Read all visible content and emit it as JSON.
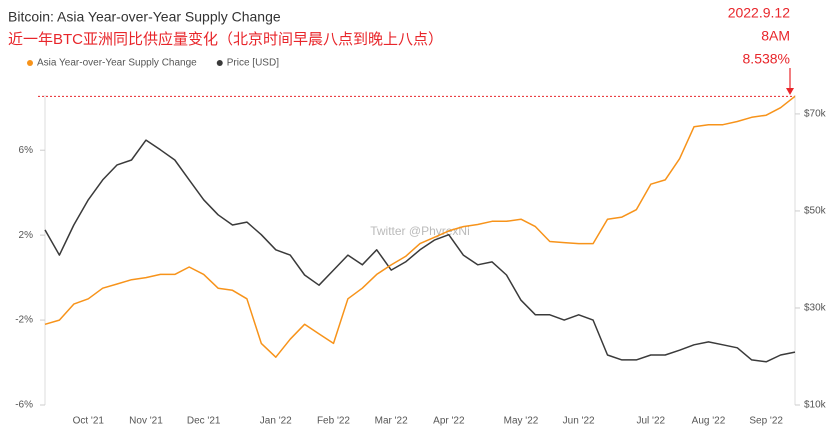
{
  "chart_data": {
    "type": "line",
    "title": "Bitcoin: Asia Year-over-Year Supply Change",
    "subtitle": "近一年BTC亚洲同比供应量变化（北京时间早晨八点到晚上八点）",
    "watermark": "Twitter @PhyrexNi",
    "annotation": {
      "date": "2022.9.12",
      "time": "8AM",
      "value": 8.538,
      "label": "8.538%",
      "color": "#e8262b"
    },
    "categories": [
      null,
      null,
      null,
      "Oct '21",
      null,
      null,
      null,
      "Nov '21",
      null,
      null,
      null,
      "Dec '21",
      null,
      null,
      null,
      null,
      "Jan '22",
      null,
      null,
      null,
      "Feb '22",
      null,
      null,
      null,
      "Mar '22",
      null,
      null,
      null,
      "Apr '22",
      null,
      null,
      null,
      null,
      "May '22",
      null,
      null,
      null,
      "Jun '22",
      null,
      null,
      null,
      null,
      "Jul '22",
      null,
      null,
      null,
      "Aug '22",
      null,
      null,
      null,
      "Sep '22",
      null,
      null
    ],
    "series": [
      {
        "name": "Asia Year-over-Year Supply Change",
        "color": "#f7931a",
        "axis": "y",
        "values": [
          -2.2,
          -2.0,
          -1.25,
          -1.0,
          -0.5,
          -0.3,
          -0.1,
          0.0,
          0.15,
          0.15,
          0.5,
          0.15,
          -0.5,
          -0.6,
          -1.0,
          -3.1,
          -3.75,
          -2.9,
          -2.2,
          -2.65,
          -3.1,
          -1.0,
          -0.5,
          0.15,
          0.6,
          1.0,
          1.6,
          1.9,
          2.2,
          2.4,
          2.5,
          2.65,
          2.65,
          2.75,
          2.4,
          1.7,
          1.65,
          1.6,
          1.6,
          2.75,
          2.85,
          3.2,
          4.4,
          4.6,
          5.6,
          7.1,
          7.2,
          7.2,
          7.35,
          7.55,
          7.65,
          8.0,
          8.538
        ]
      },
      {
        "name": "Price [USD]",
        "color": "#3a3a3a",
        "axis": "y2",
        "values": [
          46100,
          40900,
          47100,
          52300,
          56400,
          59500,
          60500,
          64600,
          62600,
          60500,
          56400,
          52300,
          49200,
          47100,
          47700,
          45100,
          42000,
          40900,
          36800,
          34700,
          37800,
          40900,
          38900,
          42000,
          37800,
          39500,
          42000,
          44000,
          45100,
          40900,
          38900,
          39500,
          36800,
          31600,
          28600,
          28600,
          27500,
          28600,
          27500,
          20300,
          19300,
          19300,
          20300,
          20300,
          21300,
          22400,
          23000,
          22400,
          21800,
          19300,
          18900,
          20300,
          20900
        ]
      }
    ],
    "ylim": [
      -6,
      8.6
    ],
    "yticks": [
      {
        "value": -6,
        "label": "-6%"
      },
      {
        "value": -2,
        "label": "-2%"
      },
      {
        "value": 2,
        "label": "2%"
      },
      {
        "value": 6,
        "label": "6%"
      }
    ],
    "y2lim": [
      10000,
      73900
    ],
    "y2ticks": [
      {
        "value": 10000,
        "label": "$10k"
      },
      {
        "value": 30000,
        "label": "$30k"
      },
      {
        "value": 50000,
        "label": "$50k"
      },
      {
        "value": 70000,
        "label": "$70k"
      }
    ]
  }
}
